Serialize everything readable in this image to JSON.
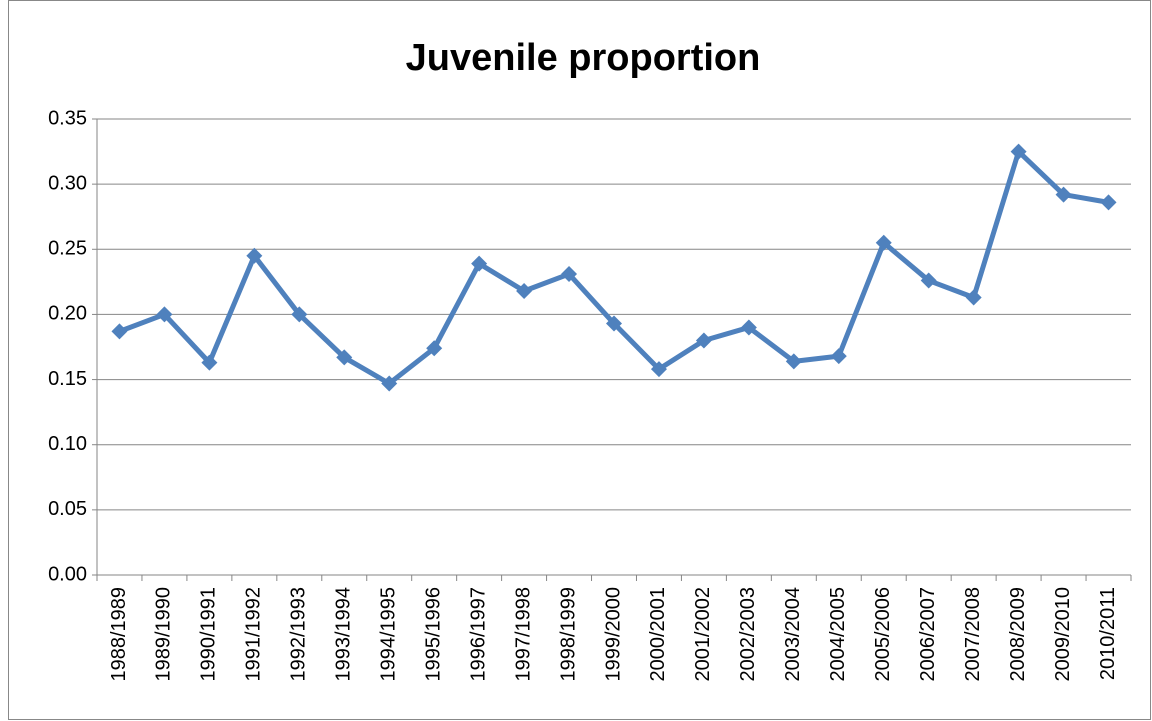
{
  "chart_data": {
    "type": "line",
    "title": "Juvenile proportion",
    "categories": [
      "1988/1989",
      "1989/1990",
      "1990/1991",
      "1991/1992",
      "1992/1993",
      "1993/1994",
      "1994/1995",
      "1995/1996",
      "1996/1997",
      "1997/1998",
      "1998/1999",
      "1999/2000",
      "2000/2001",
      "2001/2002",
      "2002/2003",
      "2003/2004",
      "2004/2005",
      "2005/2006",
      "2006/2007",
      "2007/2008",
      "2008/2009",
      "2009/2010",
      "2010/2011"
    ],
    "series": [
      {
        "color": "#4f81bd",
        "values": [
          0.187,
          0.2,
          0.163,
          0.245,
          0.2,
          0.167,
          0.147,
          0.174,
          0.239,
          0.218,
          0.231,
          0.193,
          0.158,
          0.18,
          0.19,
          0.164,
          0.168,
          0.255,
          0.226,
          0.213,
          0.325,
          0.292,
          0.286
        ]
      }
    ],
    "ylim": [
      0,
      0.35
    ],
    "yticks": [
      {
        "value": 0,
        "label": "0.00"
      },
      {
        "value": 0.05,
        "label": "0.05"
      },
      {
        "value": 0.1,
        "label": "0.10"
      },
      {
        "value": 0.15,
        "label": "0.15"
      },
      {
        "value": 0.2,
        "label": "0.20"
      },
      {
        "value": 0.25,
        "label": "0.25"
      },
      {
        "value": 0.3,
        "label": "0.30"
      },
      {
        "value": 0.35,
        "label": "0.35"
      }
    ],
    "grid": true
  }
}
